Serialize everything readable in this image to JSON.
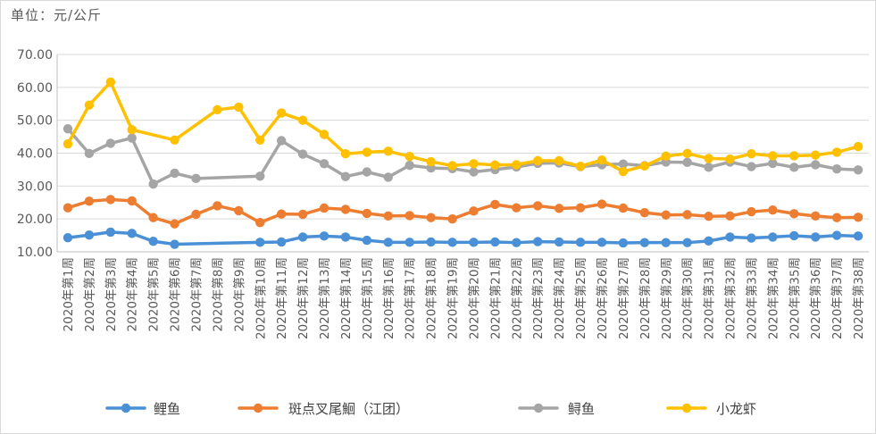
{
  "unit_label": "单位：元/公斤",
  "chart_data": {
    "type": "line",
    "title": "",
    "xlabel": "",
    "ylabel": "单位：元/公斤",
    "ylim": [
      10,
      70
    ],
    "yticks": [
      "10.00",
      "20.00",
      "30.00",
      "40.00",
      "50.00",
      "60.00",
      "70.00"
    ],
    "grid": true,
    "legend_position": "bottom",
    "categories": [
      "2020年第1周",
      "2020年第2周",
      "2020年第3周",
      "2020年第4周",
      "2020年第5周",
      "2020年第6周",
      "2020年第7周",
      "2020年第8周",
      "2020年第9周",
      "2020年第10周",
      "2020年第11周",
      "2020年第12周",
      "2020年第13周",
      "2020年第14周",
      "2020年第15周",
      "2020年第16周",
      "2020年第17周",
      "2020年第18周",
      "2020年第19周",
      "2020年第20周",
      "2020年第21周",
      "2020年第22周",
      "2020年第23周",
      "2020年第24周",
      "2020年第25周",
      "2020年第26周",
      "2020年第27周",
      "2020年第28周",
      "2020年第29周",
      "2020年第30周",
      "2020年第31周",
      "2020年第32周",
      "2020年第33周",
      "2020年第34周",
      "2020年第35周",
      "2020年第36周",
      "2020年第37周",
      "2020年第38周"
    ],
    "series": [
      {
        "name": "鲤鱼",
        "color": "#4a90d6",
        "values": [
          14.3,
          15.1,
          16.0,
          15.6,
          13.2,
          12.3,
          null,
          null,
          null,
          12.9,
          13.0,
          14.5,
          14.8,
          14.5,
          13.5,
          12.9,
          12.9,
          13.0,
          12.9,
          12.9,
          13.0,
          12.8,
          13.1,
          13.0,
          12.9,
          12.9,
          12.7,
          12.8,
          12.8,
          12.8,
          13.3,
          14.5,
          14.2,
          14.5,
          14.9,
          14.5,
          15.0,
          14.8
        ]
      },
      {
        "name": "斑点叉尾鮰（江团）",
        "color": "#ed7d31",
        "values": [
          23.4,
          25.4,
          25.9,
          25.5,
          20.4,
          18.5,
          21.4,
          24.0,
          22.5,
          18.9,
          21.5,
          21.4,
          23.3,
          22.9,
          21.7,
          20.9,
          21.0,
          20.4,
          20.0,
          22.4,
          24.4,
          23.4,
          24.0,
          23.2,
          23.4,
          24.5,
          23.3,
          21.9,
          21.2,
          21.3,
          20.8,
          20.9,
          22.2,
          22.7,
          21.6,
          20.9,
          20.4,
          20.5
        ]
      },
      {
        "name": "鲟鱼",
        "color": "#a5a5a5",
        "values": [
          47.4,
          39.9,
          43.0,
          44.6,
          30.6,
          33.9,
          32.3,
          null,
          null,
          33.0,
          43.8,
          39.7,
          36.8,
          32.9,
          34.3,
          32.7,
          36.3,
          35.5,
          35.3,
          34.3,
          35.0,
          35.8,
          36.9,
          37.0,
          35.9,
          36.5,
          36.7,
          36.2,
          37.3,
          37.2,
          35.7,
          37.3,
          35.9,
          36.9,
          35.7,
          36.5,
          35.2,
          34.9
        ]
      },
      {
        "name": "小龙虾",
        "color": "#ffc000",
        "values": [
          42.8,
          54.6,
          61.6,
          47.1,
          null,
          44.0,
          null,
          53.2,
          54.0,
          44.0,
          52.2,
          50.0,
          45.7,
          39.8,
          40.3,
          40.6,
          39.0,
          37.4,
          36.2,
          36.8,
          36.4,
          36.5,
          37.7,
          37.7,
          36.0,
          37.9,
          34.4,
          36.1,
          39.1,
          39.9,
          38.4,
          38.2,
          39.8,
          39.2,
          39.2,
          39.4,
          40.3,
          42.0
        ]
      }
    ]
  }
}
